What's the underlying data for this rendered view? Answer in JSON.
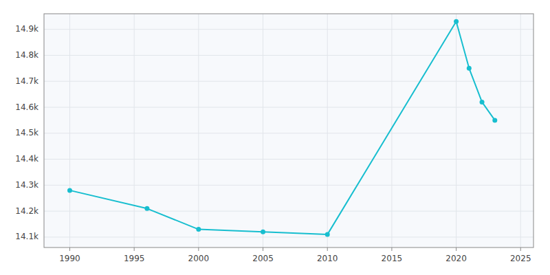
{
  "chart_data": {
    "type": "line",
    "x": [
      1990,
      1996,
      2000,
      2005,
      2010,
      2020,
      2021,
      2022,
      2023
    ],
    "values": [
      14280,
      14210,
      14130,
      14120,
      14110,
      14930,
      14750,
      14620,
      14550
    ],
    "color": "#17becf",
    "marker": "circle",
    "xlim": [
      1988,
      2026
    ],
    "ylim": [
      14060,
      14960
    ],
    "xticks": [
      1990,
      1995,
      2000,
      2005,
      2010,
      2015,
      2020,
      2025
    ],
    "yticks": [
      {
        "value": 14100,
        "label": "14.1k"
      },
      {
        "value": 14200,
        "label": "14.2k"
      },
      {
        "value": 14300,
        "label": "14.3k"
      },
      {
        "value": 14400,
        "label": "14.4k"
      },
      {
        "value": 14500,
        "label": "14.5k"
      },
      {
        "value": 14600,
        "label": "14.6k"
      },
      {
        "value": 14700,
        "label": "14.7k"
      },
      {
        "value": 14800,
        "label": "14.8k"
      },
      {
        "value": 14900,
        "label": "14.9k"
      }
    ],
    "grid": true
  }
}
